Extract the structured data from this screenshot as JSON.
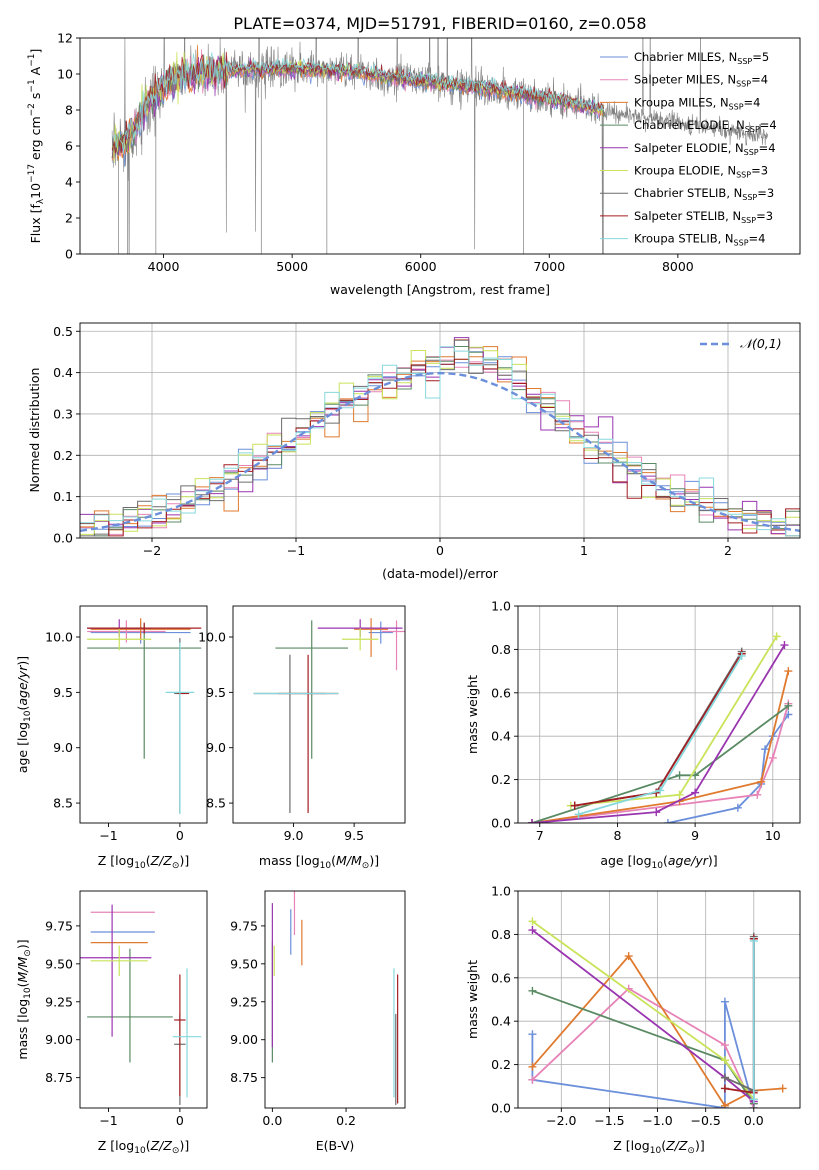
{
  "title": "PLATE=0374, MJD=51791, FIBERID=0160, z=0.058",
  "colors": {
    "Chabrier MILES": "#6b8fdb",
    "Salpeter MILES": "#e783b7",
    "Kroupa MILES": "#e07a2f",
    "Chabrier ELODIE": "#5a8a63",
    "Salpeter ELODIE": "#9a35b0",
    "Kroupa ELODIE": "#c9e35a",
    "Chabrier STELIB": "#6c6c6c",
    "Salpeter STELIB": "#a31f23",
    "Kroupa STELIB": "#86d8dd",
    "data": "#808080",
    "gauss": "#6b8fdb"
  },
  "chart_data": [
    {
      "id": "spectrum",
      "type": "line",
      "xlabel": "wavelength [Angstrom, rest frame]",
      "ylabel": "Flux [f_λ10^{-17} erg cm^{-2} s^{-1} A^{-1}]",
      "xlim": [
        3350,
        8950
      ],
      "ylim": [
        0,
        12
      ],
      "xticks": [
        4000,
        5000,
        6000,
        7000,
        8000
      ],
      "yticks": [
        0,
        2,
        4,
        6,
        8,
        10,
        12
      ],
      "legend_position": "upper right",
      "legend": [
        {
          "name": "Chabrier MILES",
          "nssp": "5"
        },
        {
          "name": "Salpeter MILES",
          "nssp": "4"
        },
        {
          "name": "Kroupa MILES",
          "nssp": "4"
        },
        {
          "name": "Chabrier ELODIE",
          "nssp": "4"
        },
        {
          "name": "Salpeter ELODIE",
          "nssp": "4"
        },
        {
          "name": "Kroupa ELODIE",
          "nssp": "3"
        },
        {
          "name": "Chabrier STELIB",
          "nssp": "3"
        },
        {
          "name": "Salpeter STELIB",
          "nssp": "3"
        },
        {
          "name": "Kroupa STELIB",
          "nssp": "4"
        }
      ],
      "model_wavelength_range": [
        3600,
        7430
      ],
      "data_wavelength_range": [
        3600,
        8700
      ],
      "continuum": [
        [
          3600,
          5.7
        ],
        [
          3700,
          6.2
        ],
        [
          3800,
          7.2
        ],
        [
          3900,
          8.6
        ],
        [
          4000,
          9.4
        ],
        [
          4200,
          10.0
        ],
        [
          4500,
          10.2
        ],
        [
          5000,
          10.3
        ],
        [
          5500,
          10.1
        ],
        [
          6000,
          9.6
        ],
        [
          6500,
          9.2
        ],
        [
          7000,
          8.6
        ],
        [
          7400,
          8.0
        ],
        [
          8000,
          7.3
        ],
        [
          8700,
          6.5
        ]
      ]
    },
    {
      "id": "residual-histogram",
      "type": "line",
      "xlabel": "(data-model)/error",
      "ylabel": "Normed distribution",
      "xlim": [
        -2.5,
        2.5
      ],
      "ylim": [
        0,
        0.52
      ],
      "xticks": [
        -2,
        -1,
        0,
        1,
        2
      ],
      "yticks": [
        0.0,
        0.1,
        0.2,
        0.3,
        0.4,
        0.5
      ],
      "gaussian_label": "N(0,1)",
      "gaussian": {
        "mean": 0,
        "sigma": 1,
        "range": [
          -2.5,
          2.5
        ]
      },
      "bin_width": 0.1,
      "grid": true
    },
    {
      "id": "age-vs-metallicity",
      "type": "scatter",
      "xlabel": "Z [log10(Z/Z⊙)]",
      "ylabel": "age [log10(age/yr)]",
      "xlim": [
        -1.4,
        0.38
      ],
      "ylim": [
        8.32,
        10.28
      ],
      "xticks": [
        -1,
        0
      ],
      "yticks": [
        8.5,
        9.0,
        9.5,
        10.0
      ],
      "errorbars": [
        {
          "series": "Chabrier ELODIE",
          "x": -0.5,
          "y": 9.9,
          "xerr": 0.8,
          "yerr": [
            1.0,
            0.22
          ]
        },
        {
          "series": "Chabrier MILES",
          "x": -0.55,
          "y": 10.04,
          "xerr": 0.7,
          "yerr": 0.1
        },
        {
          "series": "Salpeter MILES",
          "x": -0.75,
          "y": 10.05,
          "xerr": 0.55,
          "yerr": 0.1
        },
        {
          "series": "Kroupa MILES",
          "x": -0.55,
          "y": 10.07,
          "xerr": 0.7,
          "yerr": 0.1
        },
        {
          "series": "Salpeter ELODIE",
          "x": -0.85,
          "y": 10.08,
          "xerr": 0.45,
          "yerr": 0.08
        },
        {
          "series": "Kroupa ELODIE",
          "x": -0.85,
          "y": 9.98,
          "xerr": 0.45,
          "yerr": 0.1
        },
        {
          "series": "Salpeter STELIB",
          "x": -0.5,
          "y": 10.08,
          "xerr": 0.8,
          "yerr": 0.05
        },
        {
          "series": "Chabrier STELIB",
          "x": 0.0,
          "y": 9.49,
          "xerr": 0.08,
          "yerr": [
            1.08,
            0.5
          ]
        },
        {
          "series": "Salpeter STELIB",
          "x": 0.05,
          "y": 9.49,
          "xerr": 0.08,
          "yerr": 0.0
        },
        {
          "series": "Kroupa STELIB",
          "x": 0.0,
          "y": 9.5,
          "xerr": 0.2,
          "yerr": [
            1.1,
            0.45
          ]
        }
      ]
    },
    {
      "id": "age-vs-mass",
      "type": "scatter",
      "xlabel": "mass [log10(M/M⊙)]",
      "ylabel": "",
      "xlim": [
        8.5,
        9.92
      ],
      "ylim": [
        8.32,
        10.28
      ],
      "xticks": [
        9.0,
        9.5
      ],
      "yticks": [
        8.5,
        9.0,
        9.5,
        10.0
      ],
      "errorbars": [
        {
          "series": "Chabrier ELODIE",
          "x": 9.15,
          "y": 9.9,
          "xerr": 0.3,
          "yerr": [
            1.0,
            0.25
          ]
        },
        {
          "series": "Chabrier STELIB",
          "x": 8.97,
          "y": 9.49,
          "xerr": 0.3,
          "yerr": [
            1.08,
            0.35
          ]
        },
        {
          "series": "Salpeter STELIB",
          "x": 9.12,
          "y": 9.49,
          "xerr": 0.25,
          "yerr": [
            1.08,
            0.35
          ]
        },
        {
          "series": "Kroupa STELIB",
          "x": 9.02,
          "y": 9.49,
          "xerr": 0.35,
          "yerr": 0.0
        },
        {
          "series": "Chabrier MILES",
          "x": 9.72,
          "y": 10.04,
          "xerr": 0.1,
          "yerr": 0.1
        },
        {
          "series": "Salpeter MILES",
          "x": 9.85,
          "y": 10.05,
          "xerr": 0.12,
          "yerr": [
            0.35,
            0.1
          ]
        },
        {
          "series": "Kroupa MILES",
          "x": 9.64,
          "y": 10.07,
          "xerr": 0.14,
          "yerr": [
            0.25,
            0.1
          ]
        },
        {
          "series": "Salpeter ELODIE",
          "x": 9.55,
          "y": 10.08,
          "xerr": 0.35,
          "yerr": 0.08
        },
        {
          "series": "Kroupa ELODIE",
          "x": 9.55,
          "y": 9.98,
          "xerr": 0.15,
          "yerr": 0.1
        }
      ]
    },
    {
      "id": "mass-weight-vs-age",
      "type": "line",
      "xlabel": "age [log10(age/yr)]",
      "ylabel": "mass weight",
      "xlim": [
        6.72,
        10.35
      ],
      "ylim": [
        0,
        1.0
      ],
      "xticks": [
        7,
        8,
        9,
        10
      ],
      "yticks": [
        0.0,
        0.2,
        0.4,
        0.6,
        0.8,
        1.0
      ],
      "grid": true,
      "series": [
        {
          "name": "Chabrier MILES",
          "points": [
            [
              8.65,
              0.0
            ],
            [
              9.55,
              0.07
            ],
            [
              9.85,
              0.18
            ],
            [
              9.9,
              0.34
            ],
            [
              10.0,
              0.4
            ],
            [
              10.2,
              0.5
            ]
          ]
        },
        {
          "name": "Salpeter MILES",
          "points": [
            [
              6.9,
              0.0
            ],
            [
              9.8,
              0.13
            ],
            [
              10.0,
              0.3
            ],
            [
              10.2,
              0.55
            ]
          ]
        },
        {
          "name": "Kroupa MILES",
          "points": [
            [
              6.9,
              0.0
            ],
            [
              8.8,
              0.1
            ],
            [
              9.85,
              0.19
            ],
            [
              10.2,
              0.7
            ]
          ]
        },
        {
          "name": "Chabrier ELODIE",
          "points": [
            [
              6.9,
              0.0
            ],
            [
              8.8,
              0.22
            ],
            [
              9.0,
              0.22
            ],
            [
              10.2,
              0.54
            ]
          ]
        },
        {
          "name": "Salpeter ELODIE",
          "points": [
            [
              6.9,
              0.0
            ],
            [
              8.5,
              0.05
            ],
            [
              9.0,
              0.14
            ],
            [
              10.15,
              0.82
            ]
          ]
        },
        {
          "name": "Kroupa ELODIE",
          "points": [
            [
              7.4,
              0.08
            ],
            [
              8.8,
              0.13
            ],
            [
              10.05,
              0.86
            ]
          ]
        },
        {
          "name": "Chabrier STELIB",
          "points": [
            [
              7.45,
              0.08
            ],
            [
              8.5,
              0.14
            ],
            [
              9.6,
              0.79
            ]
          ]
        },
        {
          "name": "Salpeter STELIB",
          "points": [
            [
              7.45,
              0.08
            ],
            [
              8.5,
              0.14
            ],
            [
              9.6,
              0.78
            ]
          ]
        },
        {
          "name": "Kroupa STELIB",
          "points": [
            [
              7.5,
              0.04
            ],
            [
              8.55,
              0.15
            ],
            [
              9.6,
              0.77
            ]
          ]
        }
      ]
    },
    {
      "id": "mass-vs-metallicity",
      "type": "scatter",
      "xlabel": "Z [log10(Z/Z⊙)]",
      "ylabel": "mass [log10(M/M⊙)]",
      "xlim": [
        -1.4,
        0.38
      ],
      "ylim": [
        8.55,
        9.98
      ],
      "xticks": [
        -1,
        0
      ],
      "yticks": [
        8.75,
        9.0,
        9.25,
        9.5,
        9.75
      ],
      "errorbars": [
        {
          "series": "Chabrier MILES",
          "x": -0.8,
          "y": 9.71,
          "xerr": 0.45,
          "yerr": 0.0
        },
        {
          "series": "Salpeter MILES",
          "x": -0.8,
          "y": 9.84,
          "xerr": 0.45,
          "yerr": 0.0
        },
        {
          "series": "Kroupa MILES",
          "x": -0.85,
          "y": 9.64,
          "xerr": 0.4,
          "yerr": 0.0
        },
        {
          "series": "Chabrier ELODIE",
          "x": -0.7,
          "y": 9.15,
          "xerr": 0.6,
          "yerr": [
            0.3,
            0.45
          ]
        },
        {
          "series": "Salpeter ELODIE",
          "x": -0.95,
          "y": 9.54,
          "xerr": 0.55,
          "yerr": [
            0.52,
            0.35
          ]
        },
        {
          "series": "Kroupa ELODIE",
          "x": -0.85,
          "y": 9.52,
          "xerr": 0.4,
          "yerr": 0.1
        },
        {
          "series": "Chabrier STELIB",
          "x": 0.0,
          "y": 8.97,
          "xerr": 0.08,
          "yerr": [
            0.4,
            0.2
          ]
        },
        {
          "series": "Salpeter STELIB",
          "x": 0.0,
          "y": 9.13,
          "xerr": 0.08,
          "yerr": [
            0.5,
            0.3
          ]
        },
        {
          "series": "Kroupa STELIB",
          "x": 0.1,
          "y": 9.02,
          "xerr": 0.2,
          "yerr": [
            0.4,
            0.45
          ]
        }
      ]
    },
    {
      "id": "mass-vs-extinction",
      "type": "scatter",
      "xlabel": "E(B-V)",
      "ylabel": "",
      "xlim": [
        -0.02,
        0.36
      ],
      "ylim": [
        8.55,
        9.98
      ],
      "xticks": [
        0.0,
        0.2
      ],
      "yticks": [
        8.75,
        9.0,
        9.25,
        9.5,
        9.75
      ],
      "errorbars": [
        {
          "series": "Chabrier ELODIE",
          "x": 0.0,
          "y": 9.2,
          "xerr": 0.0,
          "yerr": [
            0.35,
            0.45
          ]
        },
        {
          "series": "Salpeter ELODIE",
          "x": 0.0,
          "y": 9.55,
          "xerr": 0.0,
          "yerr": [
            0.6,
            0.35
          ]
        },
        {
          "series": "Kroupa ELODIE",
          "x": 0.005,
          "y": 9.52,
          "xerr": 0.0,
          "yerr": 0.1
        },
        {
          "series": "Chabrier MILES",
          "x": 0.05,
          "y": 9.71,
          "xerr": 0.0,
          "yerr": 0.15
        },
        {
          "series": "Salpeter MILES",
          "x": 0.06,
          "y": 9.84,
          "xerr": 0.0,
          "yerr": 0.15
        },
        {
          "series": "Kroupa MILES",
          "x": 0.08,
          "y": 9.64,
          "xerr": 0.0,
          "yerr": 0.15
        },
        {
          "series": "Kroupa STELIB",
          "x": 0.33,
          "y": 9.02,
          "xerr": 0.0,
          "yerr": [
            0.4,
            0.45
          ]
        },
        {
          "series": "Chabrier STELIB",
          "x": 0.335,
          "y": 8.97,
          "xerr": 0.0,
          "yerr": [
            0.4,
            0.2
          ]
        },
        {
          "series": "Salpeter STELIB",
          "x": 0.34,
          "y": 9.13,
          "xerr": 0.0,
          "yerr": [
            0.55,
            0.3
          ]
        }
      ]
    },
    {
      "id": "mass-weight-vs-metallicity",
      "type": "line",
      "xlabel": "Z [log10(Z/Z⊙)]",
      "ylabel": "mass weight",
      "xlim": [
        -2.45,
        0.48
      ],
      "ylim": [
        0,
        1.0
      ],
      "xticks": [
        -2.0,
        -1.5,
        -1.0,
        -0.5,
        0.0
      ],
      "yticks": [
        0.0,
        0.2,
        0.4,
        0.6,
        0.8,
        1.0
      ],
      "grid": true,
      "series": [
        {
          "name": "Chabrier MILES",
          "points": [
            [
              -2.3,
              0.34
            ],
            [
              -2.3,
              0.13
            ],
            [
              -0.3,
              0.0
            ],
            [
              -0.3,
              0.49
            ],
            [
              0.0,
              0.0
            ],
            [
              0.0,
              0.78
            ]
          ]
        },
        {
          "name": "Salpeter MILES",
          "points": [
            [
              -2.3,
              0.13
            ],
            [
              -1.3,
              0.55
            ],
            [
              -0.3,
              0.29
            ],
            [
              0.0,
              0.0
            ]
          ]
        },
        {
          "name": "Kroupa MILES",
          "points": [
            [
              -2.3,
              0.19
            ],
            [
              -1.3,
              0.7
            ],
            [
              -0.3,
              0.01
            ],
            [
              0.0,
              0.08
            ],
            [
              0.3,
              0.09
            ]
          ]
        },
        {
          "name": "Chabrier ELODIE",
          "points": [
            [
              -2.3,
              0.54
            ],
            [
              -0.3,
              0.22
            ],
            [
              0.0,
              0.02
            ]
          ]
        },
        {
          "name": "Salpeter ELODIE",
          "points": [
            [
              -2.3,
              0.82
            ],
            [
              -0.3,
              0.14
            ],
            [
              0.0,
              0.03
            ]
          ]
        },
        {
          "name": "Kroupa ELODIE",
          "points": [
            [
              -2.3,
              0.86
            ],
            [
              -0.3,
              0.22
            ],
            [
              0.0,
              0.04
            ]
          ]
        },
        {
          "name": "Chabrier STELIB",
          "points": [
            [
              -0.3,
              0.14
            ],
            [
              0.0,
              0.08
            ],
            [
              0.0,
              0.79
            ]
          ]
        },
        {
          "name": "Salpeter STELIB",
          "points": [
            [
              -0.3,
              0.09
            ],
            [
              0.0,
              0.07
            ],
            [
              0.0,
              0.78
            ]
          ]
        },
        {
          "name": "Kroupa STELIB",
          "points": [
            [
              0.0,
              0.04
            ],
            [
              0.0,
              0.77
            ]
          ]
        }
      ]
    }
  ]
}
